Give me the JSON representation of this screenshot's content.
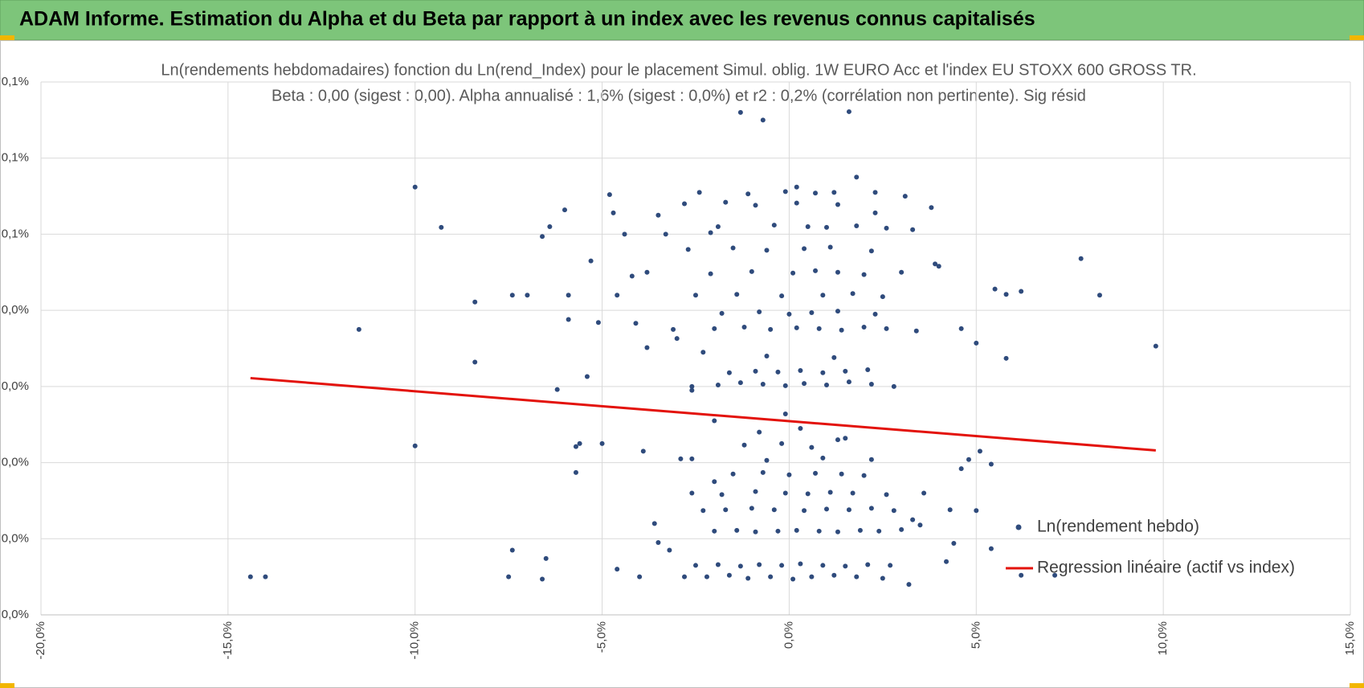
{
  "header": "ADAM Informe. Estimation du Alpha et du Beta par rapport à un index avec les revenus connus capitalisés",
  "chart_data": {
    "type": "scatter",
    "title": "Ln(rendements hebdomadaires) fonction du Ln(rend_Index) pour le placement Simul. oblig. 1W EURO Acc et l'index EU STOXX 600 GROSS TR.",
    "subtitle": "Beta : 0,00 (sigest : 0,00). Alpha annualisé : 1,6% (sigest : 0,0%) et r2 : 0,2% (corrélation non pertinente). Sig résid",
    "xlim": [
      -20,
      15
    ],
    "xticks": [
      {
        "value": -20,
        "label": "-20,0%"
      },
      {
        "value": -15,
        "label": "-15,0%"
      },
      {
        "value": -10,
        "label": "-10,0%"
      },
      {
        "value": -5,
        "label": "-5,0%"
      },
      {
        "value": 0,
        "label": "0,0%"
      },
      {
        "value": 5,
        "label": "5,0%"
      },
      {
        "value": 10,
        "label": "10,0%"
      },
      {
        "value": 15,
        "label": "15,0%"
      }
    ],
    "ylim": [
      0,
      0.07
    ],
    "yticks": [
      {
        "value": 0,
        "label": "0,0%"
      },
      {
        "value": 0.01,
        "label": "0,0%"
      },
      {
        "value": 0.02,
        "label": "0,0%"
      },
      {
        "value": 0.03,
        "label": "0,0%"
      },
      {
        "value": 0.04,
        "label": "0,0%"
      },
      {
        "value": 0.05,
        "label": "0,1%"
      },
      {
        "value": 0.06,
        "label": "0,1%"
      },
      {
        "value": 0.07,
        "label": "0,1%"
      }
    ],
    "grid": true,
    "legend": "right",
    "series": [
      {
        "name": "Ln(rendement hebdo)",
        "color": "#2f4b7c",
        "type": "scatter",
        "x": [
          -14.4,
          -14.0,
          -11.5,
          -10.0,
          -10.0,
          -9.3,
          -8.4,
          -8.4,
          -7.5,
          -7.4,
          -7.4,
          -7.0,
          -6.6,
          -6.5,
          -6.6,
          -6.4,
          -6.2,
          -6.0,
          -5.9,
          -5.9,
          -5.7,
          -5.7,
          -5.6,
          -5.4,
          -5.3,
          -5.1,
          -5.0,
          -4.8,
          -4.7,
          -4.6,
          -4.6,
          -4.2,
          -4.1,
          -3.8,
          -3.5,
          -3.0,
          -2.6,
          -2.6,
          -2.1,
          -2.0,
          -1.3,
          -0.7,
          0.2,
          1.6,
          1.8,
          2.3,
          2.3,
          3.1,
          3.3,
          3.8,
          3.9,
          4.0,
          4.3,
          4.4,
          4.6,
          4.6,
          4.8,
          5.0,
          5.0,
          5.1,
          5.4,
          5.4,
          5.5,
          5.8,
          5.8,
          6.2,
          6.2,
          7.1,
          7.8,
          8.3,
          9.8,
          -2.8,
          -2.2,
          -1.6,
          -1.1,
          -0.5,
          0.1,
          0.6,
          1.2,
          1.8,
          2.5,
          -2.5,
          -1.9,
          -1.3,
          -0.8,
          -0.2,
          0.3,
          0.9,
          1.5,
          2.1,
          2.7,
          -2.0,
          -1.4,
          -0.9,
          -0.3,
          0.2,
          0.8,
          1.3,
          1.9,
          2.4,
          3.0,
          -2.3,
          -1.7,
          -1.0,
          -0.4,
          0.4,
          1.0,
          1.6,
          2.2,
          2.8,
          3.3,
          -3.2,
          -2.6,
          -1.8,
          -0.9,
          -0.1,
          0.5,
          1.1,
          1.7,
          2.6,
          3.6,
          -1.5,
          -0.7,
          0.0,
          0.7,
          1.4,
          2.0,
          -2.9,
          -0.6,
          0.9,
          2.2,
          -1.2,
          -0.2,
          0.6,
          1.3,
          -3.5,
          -0.8,
          0.3,
          1.5,
          -2.0,
          -0.1,
          -2.6,
          -1.9,
          -1.3,
          -0.7,
          -0.1,
          0.4,
          1.0,
          1.6,
          2.2,
          2.8,
          -1.6,
          -0.9,
          -0.3,
          0.3,
          0.9,
          1.5,
          2.1,
          -2.3,
          -0.6,
          1.2,
          -3.1,
          -2.0,
          -1.2,
          -0.5,
          0.2,
          0.8,
          1.4,
          2.0,
          2.6,
          3.4,
          -1.8,
          -0.8,
          0.0,
          0.6,
          1.3,
          2.3,
          -2.5,
          -1.4,
          -0.2,
          0.9,
          1.7,
          2.5,
          -3.8,
          -2.1,
          -1.0,
          0.1,
          0.7,
          1.3,
          2.0,
          3.0,
          -2.7,
          -1.5,
          -0.6,
          0.4,
          1.1,
          2.2,
          -3.3,
          -1.9,
          -0.4,
          0.5,
          1.0,
          1.8,
          2.6,
          -2.8,
          -1.7,
          -0.9,
          0.2,
          1.3,
          -2.4,
          -1.1,
          -0.1,
          0.7,
          1.2,
          -4.0,
          -3.6,
          3.5,
          4.2,
          -4.4,
          3.2,
          -3.9
        ],
        "values": [
          0.005,
          0.005,
          0.0375,
          0.0562,
          0.0222,
          0.0509,
          0.0411,
          0.0332,
          0.005,
          0.0085,
          0.042,
          0.042,
          0.0047,
          0.0074,
          0.0497,
          0.051,
          0.0296,
          0.0532,
          0.042,
          0.0388,
          0.0221,
          0.0187,
          0.0225,
          0.0313,
          0.0465,
          0.0384,
          0.0225,
          0.0552,
          0.0528,
          0.042,
          0.006,
          0.0445,
          0.0383,
          0.0351,
          0.0525,
          0.0363,
          0.0295,
          0.0205,
          0.0502,
          0.0255,
          0.066,
          0.065,
          0.0562,
          0.0661,
          0.0575,
          0.0555,
          0.0528,
          0.055,
          0.0506,
          0.0535,
          0.0461,
          0.0458,
          0.0138,
          0.0094,
          0.0376,
          0.0192,
          0.0204,
          0.0357,
          0.0137,
          0.0215,
          0.0198,
          0.0087,
          0.0428,
          0.0337,
          0.0421,
          0.0425,
          0.0052,
          0.0052,
          0.0468,
          0.042,
          0.0353,
          0.005,
          0.005,
          0.0052,
          0.0048,
          0.005,
          0.0047,
          0.005,
          0.0052,
          0.005,
          0.0048,
          0.0065,
          0.0066,
          0.0064,
          0.0066,
          0.0065,
          0.0067,
          0.0065,
          0.0064,
          0.0066,
          0.0065,
          0.011,
          0.0111,
          0.0109,
          0.011,
          0.0111,
          0.011,
          0.0109,
          0.0111,
          0.011,
          0.0112,
          0.0137,
          0.0138,
          0.014,
          0.0138,
          0.0137,
          0.0139,
          0.0138,
          0.014,
          0.0137,
          0.0125,
          0.0085,
          0.016,
          0.0158,
          0.0162,
          0.016,
          0.0159,
          0.0161,
          0.016,
          0.0158,
          0.016,
          0.0185,
          0.0187,
          0.0184,
          0.0186,
          0.0185,
          0.0183,
          0.0205,
          0.0203,
          0.0206,
          0.0204,
          0.0223,
          0.0225,
          0.022,
          0.023,
          0.0095,
          0.024,
          0.0245,
          0.0232,
          0.0175,
          0.0264,
          0.03,
          0.0302,
          0.0305,
          0.0303,
          0.0301,
          0.0304,
          0.0302,
          0.0306,
          0.0303,
          0.03,
          0.0318,
          0.032,
          0.0319,
          0.0321,
          0.0318,
          0.032,
          0.0322,
          0.0345,
          0.034,
          0.0338,
          0.0375,
          0.0376,
          0.0378,
          0.0375,
          0.0377,
          0.0376,
          0.0374,
          0.0378,
          0.0376,
          0.0373,
          0.0396,
          0.0398,
          0.0395,
          0.0397,
          0.0399,
          0.0395,
          0.042,
          0.0421,
          0.0419,
          0.042,
          0.0422,
          0.0418,
          0.045,
          0.0448,
          0.0451,
          0.0449,
          0.0452,
          0.045,
          0.0447,
          0.045,
          0.048,
          0.0482,
          0.0479,
          0.0481,
          0.0483,
          0.0478,
          0.05,
          0.051,
          0.0512,
          0.051,
          0.0509,
          0.0511,
          0.0508,
          0.054,
          0.0542,
          0.0538,
          0.0541,
          0.0539,
          0.0555,
          0.0553,
          0.0556,
          0.0554,
          0.0555,
          0.005,
          0.012,
          0.0118,
          0.007,
          0.05,
          0.004,
          0.0215
        ]
      },
      {
        "name": "Regression linéaire (actif vs index)",
        "color": "#e3120b",
        "type": "line",
        "x": [
          -14.4,
          9.8
        ],
        "values": [
          0.0311,
          0.0216
        ]
      }
    ]
  }
}
